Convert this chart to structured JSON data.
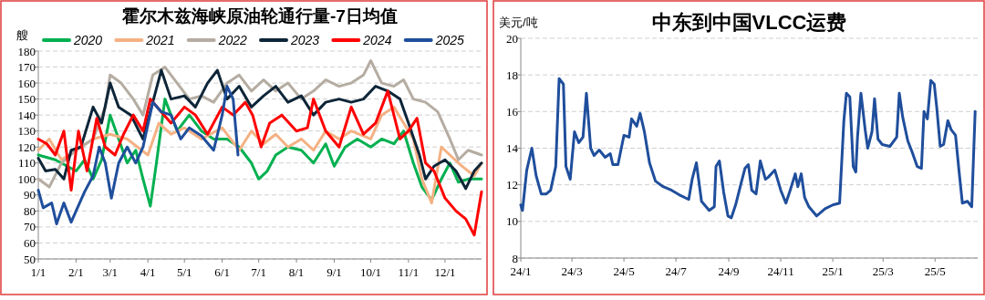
{
  "chart_data": [
    {
      "type": "line",
      "title": "霍尔木兹海峡原油轮通行量-7日均值",
      "ylabel": "艘",
      "legend": "top",
      "grid": "y",
      "line_style": "solid",
      "xlim": [
        "--01-01",
        "--12-31"
      ],
      "ylim": [
        50,
        180
      ],
      "yticks": [
        50,
        60,
        70,
        80,
        90,
        100,
        110,
        120,
        130,
        140,
        150,
        160,
        170,
        180
      ],
      "xticks": [
        {
          "value": "--01-01",
          "label": "1/1"
        },
        {
          "value": "--02-01",
          "label": "2/1"
        },
        {
          "value": "--03-01",
          "label": "3/1"
        },
        {
          "value": "--04-01",
          "label": "4/1"
        },
        {
          "value": "--05-01",
          "label": "5/1"
        },
        {
          "value": "--06-01",
          "label": "6/1"
        },
        {
          "value": "--07-01",
          "label": "7/1"
        },
        {
          "value": "--08-01",
          "label": "8/1"
        },
        {
          "value": "--09-01",
          "label": "9/1"
        },
        {
          "value": "--10-01",
          "label": "10/1"
        },
        {
          "value": "--11-01",
          "label": "11/1"
        },
        {
          "value": "--12-01",
          "label": "12/1"
        }
      ],
      "series": [
        {
          "name": "2020",
          "color": "#00b050",
          "x": [
            "--01-01",
            "--01-15",
            "--02-01",
            "--02-08",
            "--02-15",
            "--02-22",
            "--03-01",
            "--03-08",
            "--03-15",
            "--03-22",
            "--03-28",
            "--04-03",
            "--04-08",
            "--04-15",
            "--04-25",
            "--05-05",
            "--05-15",
            "--05-25",
            "--06-05",
            "--06-15",
            "--06-25",
            "--07-01",
            "--07-08",
            "--07-15",
            "--07-25",
            "--08-05",
            "--08-15",
            "--08-25",
            "--09-01",
            "--09-10",
            "--09-20",
            "--10-01",
            "--10-10",
            "--10-20",
            "--10-28",
            "--11-05",
            "--11-12",
            "--11-20",
            "--11-28",
            "--12-05",
            "--12-12",
            "--12-20",
            "--12-31"
          ],
          "values": [
            115,
            112,
            105,
            112,
            100,
            112,
            140,
            125,
            110,
            118,
            100,
            83,
            110,
            150,
            130,
            140,
            130,
            125,
            125,
            120,
            110,
            100,
            105,
            115,
            120,
            118,
            110,
            122,
            108,
            120,
            125,
            120,
            125,
            122,
            130,
            110,
            95,
            87,
            100,
            110,
            98,
            100,
            100
          ]
        },
        {
          "name": "2021",
          "color": "#f4b183",
          "x": [
            "--01-01",
            "--01-10",
            "--01-20",
            "--02-01",
            "--02-15",
            "--03-01",
            "--03-15",
            "--04-01",
            "--04-10",
            "--04-20",
            "--05-01",
            "--05-15",
            "--06-01",
            "--06-15",
            "--06-25",
            "--07-05",
            "--07-15",
            "--07-25",
            "--08-05",
            "--08-15",
            "--08-25",
            "--09-05",
            "--09-15",
            "--10-01",
            "--10-10",
            "--10-20",
            "--10-28",
            "--11-05",
            "--11-12",
            "--11-20",
            "--11-28",
            "--12-05",
            "--12-15",
            "--12-25",
            "--12-31"
          ],
          "values": [
            118,
            125,
            112,
            118,
            125,
            128,
            125,
            115,
            135,
            128,
            132,
            125,
            132,
            118,
            130,
            122,
            128,
            120,
            125,
            118,
            130,
            125,
            130,
            125,
            140,
            145,
            135,
            125,
            100,
            85,
            120,
            115,
            108,
            102,
            110
          ]
        },
        {
          "name": "2022",
          "color": "#b5aca2",
          "x": [
            "--01-01",
            "--01-10",
            "--01-20",
            "--02-01",
            "--02-15",
            "--02-25",
            "--03-01",
            "--03-10",
            "--03-20",
            "--03-28",
            "--04-05",
            "--04-15",
            "--04-25",
            "--05-05",
            "--05-15",
            "--05-25",
            "--06-05",
            "--06-15",
            "--06-25",
            "--07-05",
            "--07-15",
            "--07-25",
            "--08-05",
            "--08-15",
            "--08-25",
            "--09-05",
            "--09-15",
            "--09-25",
            "--10-01",
            "--10-10",
            "--10-20",
            "--10-28",
            "--11-05",
            "--11-15",
            "--11-25",
            "--12-05",
            "--12-12",
            "--12-20",
            "--12-31"
          ],
          "values": [
            100,
            95,
            110,
            118,
            125,
            145,
            165,
            160,
            150,
            140,
            165,
            170,
            160,
            150,
            152,
            148,
            160,
            165,
            155,
            162,
            155,
            160,
            150,
            155,
            162,
            158,
            160,
            165,
            174,
            160,
            158,
            162,
            150,
            148,
            142,
            125,
            112,
            118,
            115
          ]
        },
        {
          "name": "2023",
          "color": "#0d2538",
          "x": [
            "--01-01",
            "--01-07",
            "--01-15",
            "--01-22",
            "--01-28",
            "--02-05",
            "--02-15",
            "--02-22",
            "--03-01",
            "--03-08",
            "--03-18",
            "--03-28",
            "--04-05",
            "--04-12",
            "--04-20",
            "--05-01",
            "--05-10",
            "--05-20",
            "--05-28",
            "--06-05",
            "--06-15",
            "--06-25",
            "--07-05",
            "--07-15",
            "--07-25",
            "--08-05",
            "--08-15",
            "--08-25",
            "--09-05",
            "--09-15",
            "--09-25",
            "--10-05",
            "--10-15",
            "--10-25",
            "--11-01",
            "--11-10",
            "--11-15",
            "--11-22",
            "--12-01",
            "--12-10",
            "--12-18",
            "--12-25",
            "--12-31"
          ],
          "values": [
            113,
            105,
            106,
            100,
            118,
            120,
            145,
            135,
            160,
            145,
            140,
            125,
            148,
            168,
            150,
            152,
            145,
            160,
            168,
            150,
            158,
            145,
            152,
            158,
            148,
            152,
            140,
            148,
            150,
            148,
            150,
            158,
            155,
            150,
            135,
            115,
            100,
            108,
            112,
            105,
            94,
            105,
            110
          ]
        },
        {
          "name": "2024",
          "color": "#ff0000",
          "x": [
            "--01-01",
            "--01-08",
            "--01-15",
            "--01-22",
            "--01-28",
            "--02-03",
            "--02-10",
            "--02-18",
            "--02-25",
            "--03-05",
            "--03-12",
            "--03-20",
            "--03-28",
            "--04-03",
            "--04-12",
            "--04-20",
            "--05-01",
            "--05-10",
            "--05-20",
            "--06-01",
            "--06-10",
            "--06-20",
            "--06-26",
            "--07-03",
            "--07-10",
            "--07-20",
            "--08-01",
            "--08-10",
            "--08-15",
            "--08-25",
            "--09-05",
            "--09-15",
            "--09-25",
            "--10-05",
            "--10-15",
            "--10-25",
            "--11-01",
            "--11-08",
            "--11-15",
            "--11-22",
            "--12-01",
            "--12-10",
            "--12-18",
            "--12-25",
            "--12-31"
          ],
          "values": [
            125,
            122,
            115,
            130,
            93,
            130,
            105,
            138,
            120,
            115,
            128,
            140,
            130,
            150,
            142,
            135,
            145,
            140,
            128,
            145,
            140,
            148,
            140,
            120,
            135,
            140,
            130,
            132,
            150,
            130,
            120,
            145,
            128,
            135,
            155,
            125,
            130,
            138,
            110,
            105,
            88,
            80,
            75,
            65,
            92
          ]
        },
        {
          "name": "2025",
          "color": "#1f4e9c",
          "x": [
            "--01-01",
            "--01-05",
            "--01-12",
            "--01-16",
            "--01-22",
            "--01-28",
            "--02-01",
            "--02-08",
            "--02-15",
            "--02-20",
            "--02-25",
            "--03-02",
            "--03-08",
            "--03-15",
            "--03-22",
            "--03-28",
            "--04-05",
            "--04-12",
            "--04-20",
            "--04-28",
            "--05-05",
            "--05-15",
            "--05-25",
            "--06-01",
            "--06-05",
            "--06-10",
            "--06-14"
          ],
          "values": [
            93,
            82,
            85,
            72,
            85,
            73,
            80,
            92,
            102,
            120,
            110,
            88,
            110,
            120,
            110,
            120,
            148,
            142,
            140,
            125,
            132,
            127,
            118,
            140,
            158,
            150,
            115
          ]
        }
      ]
    },
    {
      "type": "line",
      "title": "中东到中国VLCC运费",
      "ylabel": "美元/吨",
      "grid": "y",
      "line_style": "solid",
      "xlim": [
        "2024-01-01",
        "2025-06-20"
      ],
      "ylim": [
        8,
        20
      ],
      "yticks": [
        8,
        10,
        12,
        14,
        16,
        18,
        20
      ],
      "xticks": [
        {
          "value": "2024-01-01",
          "label": "24/1"
        },
        {
          "value": "2024-03-01",
          "label": "24/3"
        },
        {
          "value": "2024-05-01",
          "label": "24/5"
        },
        {
          "value": "2024-07-01",
          "label": "24/7"
        },
        {
          "value": "2024-09-01",
          "label": "24/9"
        },
        {
          "value": "2024-11-01",
          "label": "24/11"
        },
        {
          "value": "2025-01-01",
          "label": "25/1"
        },
        {
          "value": "2025-03-01",
          "label": "25/3"
        },
        {
          "value": "2025-05-01",
          "label": "25/5"
        }
      ],
      "series": [
        {
          "color": "#1f4e9c",
          "x": [
            "2024-01-01",
            "2024-01-03",
            "2024-01-08",
            "2024-01-14",
            "2024-01-19",
            "2024-01-25",
            "2024-01-31",
            "2024-02-05",
            "2024-02-11",
            "2024-02-15",
            "2024-02-20",
            "2024-02-23",
            "2024-02-28",
            "2024-03-04",
            "2024-03-09",
            "2024-03-14",
            "2024-03-18",
            "2024-03-23",
            "2024-03-27",
            "2024-04-02",
            "2024-04-09",
            "2024-04-15",
            "2024-04-18",
            "2024-04-24",
            "2024-05-01",
            "2024-05-07",
            "2024-05-10",
            "2024-05-16",
            "2024-05-20",
            "2024-05-25",
            "2024-05-31",
            "2024-06-07",
            "2024-06-16",
            "2024-06-26",
            "2024-07-07",
            "2024-07-16",
            "2024-07-20",
            "2024-07-25",
            "2024-07-31",
            "2024-08-09",
            "2024-08-15",
            "2024-08-17",
            "2024-08-21",
            "2024-08-26",
            "2024-08-31",
            "2024-09-04",
            "2024-09-09",
            "2024-09-15",
            "2024-09-20",
            "2024-09-24",
            "2024-09-28",
            "2024-10-03",
            "2024-10-08",
            "2024-10-14",
            "2024-10-17",
            "2024-10-25",
            "2024-11-01",
            "2024-11-07",
            "2024-11-12",
            "2024-11-18",
            "2024-11-21",
            "2024-11-25",
            "2024-11-29",
            "2024-12-04",
            "2024-12-13",
            "2024-12-23",
            "2025-01-01",
            "2025-01-09",
            "2025-01-14",
            "2025-01-17",
            "2025-01-21",
            "2025-01-25",
            "2025-01-28",
            "2025-01-30",
            "2025-02-03",
            "2025-02-08",
            "2025-02-11",
            "2025-02-16",
            "2025-02-19",
            "2025-02-23",
            "2025-02-28",
            "2025-03-09",
            "2025-03-17",
            "2025-03-20",
            "2025-03-24",
            "2025-03-30",
            "2025-04-04",
            "2025-04-10",
            "2025-04-15",
            "2025-04-18",
            "2025-04-22",
            "2025-04-26",
            "2025-04-30",
            "2025-05-03",
            "2025-05-07",
            "2025-05-11",
            "2025-05-16",
            "2025-05-20",
            "2025-05-25",
            "2025-05-29",
            "2025-06-02",
            "2025-06-08",
            "2025-06-13",
            "2025-06-17"
          ],
          "values": [
            10.9,
            10.6,
            12.8,
            14.0,
            12.5,
            11.5,
            11.5,
            11.7,
            13.0,
            17.8,
            17.5,
            13.0,
            12.3,
            14.9,
            14.3,
            14.6,
            17.0,
            14.0,
            13.6,
            13.9,
            13.5,
            13.7,
            13.1,
            13.1,
            14.7,
            14.6,
            15.6,
            15.2,
            15.9,
            14.9,
            13.2,
            12.2,
            11.9,
            11.7,
            11.4,
            11.2,
            12.3,
            13.2,
            11.1,
            10.6,
            10.8,
            13.0,
            13.3,
            11.6,
            10.3,
            10.2,
            10.9,
            12.0,
            12.9,
            13.1,
            11.7,
            11.5,
            13.3,
            12.3,
            12.4,
            12.8,
            11.7,
            11.0,
            11.7,
            12.6,
            11.9,
            12.6,
            11.3,
            10.8,
            10.3,
            10.7,
            10.9,
            11.0,
            15.5,
            17.0,
            16.8,
            13.0,
            12.7,
            14.6,
            17.0,
            15.0,
            14.0,
            14.9,
            16.7,
            14.5,
            14.2,
            14.1,
            14.6,
            17.0,
            15.7,
            14.4,
            13.8,
            13.0,
            12.9,
            16.0,
            15.6,
            17.7,
            17.5,
            16.2,
            14.1,
            14.2,
            15.5,
            15.0,
            14.7,
            12.8,
            11.0,
            11.1,
            10.8,
            16.0
          ]
        }
      ]
    }
  ]
}
